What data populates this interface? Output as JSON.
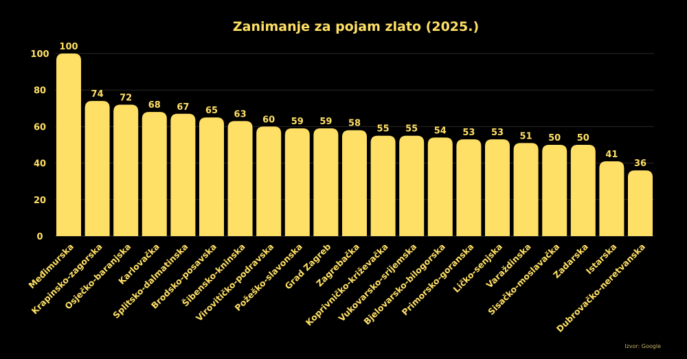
{
  "chart_data": {
    "type": "bar",
    "title": "Zanimanje za pojam zlato (2025.)",
    "xlabel": "",
    "ylabel": "",
    "ylim": [
      0,
      100
    ],
    "yticks": [
      0,
      20,
      40,
      60,
      80,
      100
    ],
    "grid": true,
    "bar_color": "#FFE066",
    "background": "#000000",
    "categories": [
      "Međimurska",
      "Krapinsko-zagorska",
      "Osječko-baranjska",
      "Karlovačka",
      "Splitsko-dalmatinska",
      "Brodsko-posavska",
      "Šibensko-kninska",
      "Virovitičko-podravska",
      "Požeško-slavonska",
      "Grad Zagreb",
      "Zagrebačka",
      "Koprivničko-križevačka",
      "Vukovarsko-srijemska",
      "Bjelovarsko-bilogorska",
      "Primorsko-goranska",
      "Ličko-senjska",
      "Varaždinska",
      "Sisačko-moslavačka",
      "Zadarska",
      "Istarska",
      "Dubrovačko-neretvanska"
    ],
    "values": [
      100,
      74,
      72,
      68,
      67,
      65,
      63,
      60,
      59,
      59,
      58,
      55,
      55,
      54,
      53,
      53,
      51,
      50,
      50,
      41,
      36
    ]
  },
  "source": "Izvor: Google"
}
